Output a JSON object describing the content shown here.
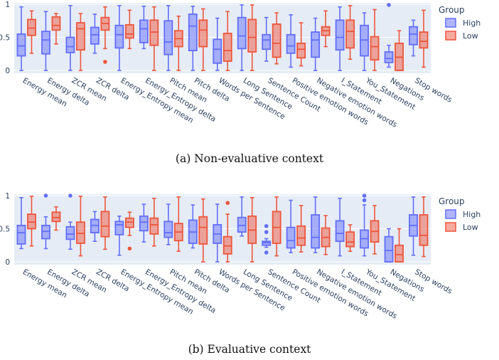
{
  "colors": {
    "high": "#636efa",
    "low": "#ef553b",
    "plot_bg": "#e5ecf6",
    "grid": "#ffffff"
  },
  "chart_data": [
    {
      "type": "box",
      "caption": "(a) Non-evaluative context",
      "legend": {
        "title": "Group",
        "placement": "right",
        "items": [
          "High",
          "Low"
        ]
      },
      "y_ticks": [
        "0",
        "0.5",
        "1"
      ],
      "ylim": [
        0,
        1
      ],
      "grid": true,
      "categories": [
        "Energy mean",
        "Energy delta",
        "ZCR mean",
        "ZCR delta",
        "Energy_Entropy mean",
        "Energy_Entropy delta",
        "Pitch mean",
        "Pitch delta",
        "Words per Sentence",
        "Long Sentence",
        "Sentence Count",
        "Positive emotion words",
        "Negative emotion words",
        "I_Statement",
        "You_Statement",
        "Negations",
        "Stop words"
      ],
      "series": [
        {
          "name": "High",
          "boxes": [
            {
              "min": 0.0,
              "q1": 0.22,
              "median": 0.37,
              "q3": 0.55,
              "max": 0.96,
              "outliers": []
            },
            {
              "min": 0.0,
              "q1": 0.25,
              "median": 0.46,
              "q3": 0.59,
              "max": 0.89,
              "outliers": []
            },
            {
              "min": 0.0,
              "q1": 0.27,
              "median": 0.36,
              "q3": 0.5,
              "max": 0.98,
              "outliers": []
            },
            {
              "min": 0.26,
              "q1": 0.4,
              "median": 0.54,
              "q3": 0.65,
              "max": 0.85,
              "outliers": []
            },
            {
              "min": 0.0,
              "q1": 0.34,
              "median": 0.54,
              "q3": 0.68,
              "max": 0.98,
              "outliers": []
            },
            {
              "min": 0.33,
              "q1": 0.42,
              "median": 0.63,
              "q3": 0.76,
              "max": 0.97,
              "outliers": []
            },
            {
              "min": 0.0,
              "q1": 0.24,
              "median": 0.43,
              "q3": 0.75,
              "max": 0.98,
              "outliers": []
            },
            {
              "min": 0.0,
              "q1": 0.3,
              "median": 0.67,
              "q3": 0.85,
              "max": 0.97,
              "outliers": []
            },
            {
              "min": 0.0,
              "q1": 0.11,
              "median": 0.32,
              "q3": 0.47,
              "max": 0.79,
              "outliers": []
            },
            {
              "min": 0.0,
              "q1": 0.33,
              "median": 0.52,
              "q3": 0.8,
              "max": 0.99,
              "outliers": []
            },
            {
              "min": 0.14,
              "q1": 0.32,
              "median": 0.46,
              "q3": 0.54,
              "max": 0.8,
              "outliers": []
            },
            {
              "min": 0.05,
              "q1": 0.26,
              "median": 0.37,
              "q3": 0.54,
              "max": 0.84,
              "outliers": []
            },
            {
              "min": 0.0,
              "q1": 0.2,
              "median": 0.46,
              "q3": 0.58,
              "max": 0.79,
              "outliers": []
            },
            {
              "min": 0.0,
              "q1": 0.31,
              "median": 0.5,
              "q3": 0.76,
              "max": 0.96,
              "outliers": []
            },
            {
              "min": 0.0,
              "q1": 0.22,
              "median": 0.46,
              "q3": 0.68,
              "max": 0.87,
              "outliers": []
            },
            {
              "min": 0.05,
              "q1": 0.12,
              "median": 0.18,
              "q3": 0.28,
              "max": 0.38,
              "outliers": [
                0.99
              ]
            },
            {
              "min": 0.22,
              "q1": 0.39,
              "median": 0.55,
              "q3": 0.66,
              "max": 0.76,
              "outliers": []
            }
          ]
        },
        {
          "name": "Low",
          "boxes": [
            {
              "min": 0.26,
              "q1": 0.53,
              "median": 0.64,
              "q3": 0.77,
              "max": 0.9,
              "outliers": []
            },
            {
              "min": 0.4,
              "q1": 0.61,
              "median": 0.68,
              "q3": 0.81,
              "max": 0.86,
              "outliers": []
            },
            {
              "min": 0.0,
              "q1": 0.31,
              "median": 0.63,
              "q3": 0.72,
              "max": 0.86,
              "outliers": []
            },
            {
              "min": 0.33,
              "q1": 0.61,
              "median": 0.71,
              "q3": 0.8,
              "max": 0.96,
              "outliers": [
                0.13
              ]
            },
            {
              "min": 0.33,
              "q1": 0.49,
              "median": 0.55,
              "q3": 0.69,
              "max": 0.91,
              "outliers": []
            },
            {
              "min": 0.0,
              "q1": 0.38,
              "median": 0.58,
              "q3": 0.76,
              "max": 0.96,
              "outliers": []
            },
            {
              "min": 0.0,
              "q1": 0.36,
              "median": 0.48,
              "q3": 0.6,
              "max": 0.82,
              "outliers": []
            },
            {
              "min": 0.0,
              "q1": 0.36,
              "median": 0.61,
              "q3": 0.76,
              "max": 0.93,
              "outliers": []
            },
            {
              "min": 0.0,
              "q1": 0.14,
              "median": 0.3,
              "q3": 0.56,
              "max": 0.89,
              "outliers": []
            },
            {
              "min": 0.0,
              "q1": 0.28,
              "median": 0.5,
              "q3": 0.77,
              "max": 0.99,
              "outliers": []
            },
            {
              "min": 0.1,
              "q1": 0.2,
              "median": 0.41,
              "q3": 0.7,
              "max": 0.87,
              "outliers": []
            },
            {
              "min": 0.07,
              "q1": 0.19,
              "median": 0.32,
              "q3": 0.41,
              "max": 0.72,
              "outliers": []
            },
            {
              "min": 0.36,
              "q1": 0.53,
              "median": 0.6,
              "q3": 0.66,
              "max": 0.9,
              "outliers": []
            },
            {
              "min": 0.17,
              "q1": 0.34,
              "median": 0.59,
              "q3": 0.76,
              "max": 0.98,
              "outliers": []
            },
            {
              "min": 0.0,
              "q1": 0.16,
              "median": 0.36,
              "q3": 0.51,
              "max": 0.92,
              "outliers": []
            },
            {
              "min": 0.0,
              "q1": 0.0,
              "median": 0.2,
              "q3": 0.41,
              "max": 0.6,
              "outliers": []
            },
            {
              "min": 0.05,
              "q1": 0.34,
              "median": 0.44,
              "q3": 0.58,
              "max": 0.91,
              "outliers": []
            }
          ]
        }
      ]
    },
    {
      "type": "box",
      "caption": "(b) Evaluative context",
      "legend": {
        "title": "Group",
        "placement": "right",
        "items": [
          "High",
          "Low"
        ]
      },
      "y_ticks": [
        "0",
        "0.5",
        "1"
      ],
      "ylim": [
        0,
        1
      ],
      "grid": true,
      "categories": [
        "Energy mean",
        "Energy delta",
        "ZCR mean",
        "ZCR delta",
        "Energy_Entropy mean",
        "Energy_Entropy delta",
        "Pitch mean",
        "Pitch delta",
        "Words per Sentence",
        "Long Sentence",
        "Sentence Count",
        "Positive emotion words",
        "Negative emotion words",
        "I_Statement",
        "You_Statement",
        "Negations",
        "Stop words"
      ],
      "series": [
        {
          "name": "High",
          "boxes": [
            {
              "min": 0.2,
              "q1": 0.27,
              "median": 0.44,
              "q3": 0.55,
              "max": 0.97,
              "outliers": []
            },
            {
              "min": 0.2,
              "q1": 0.35,
              "median": 0.46,
              "q3": 0.55,
              "max": 0.68,
              "outliers": [
                1.0
              ]
            },
            {
              "min": 0.19,
              "q1": 0.34,
              "median": 0.42,
              "q3": 0.53,
              "max": 0.6,
              "outliers": [
                1.0
              ]
            },
            {
              "min": 0.31,
              "q1": 0.44,
              "median": 0.55,
              "q3": 0.64,
              "max": 0.76,
              "outliers": []
            },
            {
              "min": 0.1,
              "q1": 0.41,
              "median": 0.56,
              "q3": 0.61,
              "max": 0.69,
              "outliers": []
            },
            {
              "min": 0.3,
              "q1": 0.47,
              "median": 0.6,
              "q3": 0.69,
              "max": 0.87,
              "outliers": []
            },
            {
              "min": 0.26,
              "q1": 0.37,
              "median": 0.44,
              "q3": 0.61,
              "max": 0.87,
              "outliers": []
            },
            {
              "min": 0.21,
              "q1": 0.28,
              "median": 0.45,
              "q3": 0.63,
              "max": 0.86,
              "outliers": []
            },
            {
              "min": 0.0,
              "q1": 0.28,
              "median": 0.42,
              "q3": 0.56,
              "max": 0.87,
              "outliers": []
            },
            {
              "min": 0.39,
              "q1": 0.45,
              "median": 0.55,
              "q3": 0.67,
              "max": 0.98,
              "outliers": []
            },
            {
              "min": 0.22,
              "q1": 0.25,
              "median": 0.29,
              "q3": 0.31,
              "max": 0.35,
              "outliers": [
                0.14,
                0.45,
                0.54
              ]
            },
            {
              "min": 0.14,
              "q1": 0.21,
              "median": 0.32,
              "q3": 0.52,
              "max": 0.93,
              "outliers": []
            },
            {
              "min": 0.14,
              "q1": 0.21,
              "median": 0.37,
              "q3": 0.71,
              "max": 0.98,
              "outliers": []
            },
            {
              "min": 0.09,
              "q1": 0.31,
              "median": 0.43,
              "q3": 0.62,
              "max": 0.96,
              "outliers": []
            },
            {
              "min": 0.09,
              "q1": 0.21,
              "median": 0.35,
              "q3": 0.48,
              "max": 0.86,
              "outliers": [
                0.93,
                1.0
              ]
            },
            {
              "min": 0.0,
              "q1": 0.0,
              "median": 0.17,
              "q3": 0.38,
              "max": 0.5,
              "outliers": []
            },
            {
              "min": 0.1,
              "q1": 0.39,
              "median": 0.55,
              "q3": 0.71,
              "max": 0.98,
              "outliers": []
            }
          ]
        },
        {
          "name": "Low",
          "boxes": [
            {
              "min": 0.24,
              "q1": 0.5,
              "median": 0.6,
              "q3": 0.72,
              "max": 0.99,
              "outliers": []
            },
            {
              "min": 0.48,
              "q1": 0.61,
              "median": 0.67,
              "q3": 0.75,
              "max": 0.83,
              "outliers": []
            },
            {
              "min": 0.09,
              "q1": 0.28,
              "median": 0.43,
              "q3": 0.6,
              "max": 0.99,
              "outliers": []
            },
            {
              "min": 0.19,
              "q1": 0.38,
              "median": 0.54,
              "q3": 0.76,
              "max": 0.98,
              "outliers": []
            },
            {
              "min": 0.4,
              "q1": 0.52,
              "median": 0.6,
              "q3": 0.66,
              "max": 0.75,
              "outliers": [
                0.2
              ]
            },
            {
              "min": 0.24,
              "q1": 0.42,
              "median": 0.56,
              "q3": 0.66,
              "max": 0.96,
              "outliers": []
            },
            {
              "min": 0.16,
              "q1": 0.32,
              "median": 0.45,
              "q3": 0.58,
              "max": 0.98,
              "outliers": []
            },
            {
              "min": 0.0,
              "q1": 0.27,
              "median": 0.52,
              "q3": 0.68,
              "max": 0.95,
              "outliers": []
            },
            {
              "min": 0.0,
              "q1": 0.12,
              "median": 0.24,
              "q3": 0.38,
              "max": 0.72,
              "outliers": [
                0.89
              ]
            },
            {
              "min": 0.0,
              "q1": 0.28,
              "median": 0.48,
              "q3": 0.69,
              "max": 0.97,
              "outliers": []
            },
            {
              "min": 0.09,
              "q1": 0.28,
              "median": 0.52,
              "q3": 0.76,
              "max": 0.98,
              "outliers": []
            },
            {
              "min": 0.15,
              "q1": 0.25,
              "median": 0.36,
              "q3": 0.54,
              "max": 0.85,
              "outliers": []
            },
            {
              "min": 0.11,
              "q1": 0.23,
              "median": 0.37,
              "q3": 0.51,
              "max": 0.7,
              "outliers": []
            },
            {
              "min": 0.16,
              "q1": 0.23,
              "median": 0.3,
              "q3": 0.45,
              "max": 0.56,
              "outliers": []
            },
            {
              "min": 0.12,
              "q1": 0.3,
              "median": 0.46,
              "q3": 0.62,
              "max": 0.85,
              "outliers": []
            },
            {
              "min": 0.0,
              "q1": 0.0,
              "median": 0.11,
              "q3": 0.25,
              "max": 0.5,
              "outliers": []
            },
            {
              "min": 0.08,
              "q1": 0.25,
              "median": 0.4,
              "q3": 0.71,
              "max": 0.98,
              "outliers": []
            }
          ]
        }
      ]
    }
  ]
}
